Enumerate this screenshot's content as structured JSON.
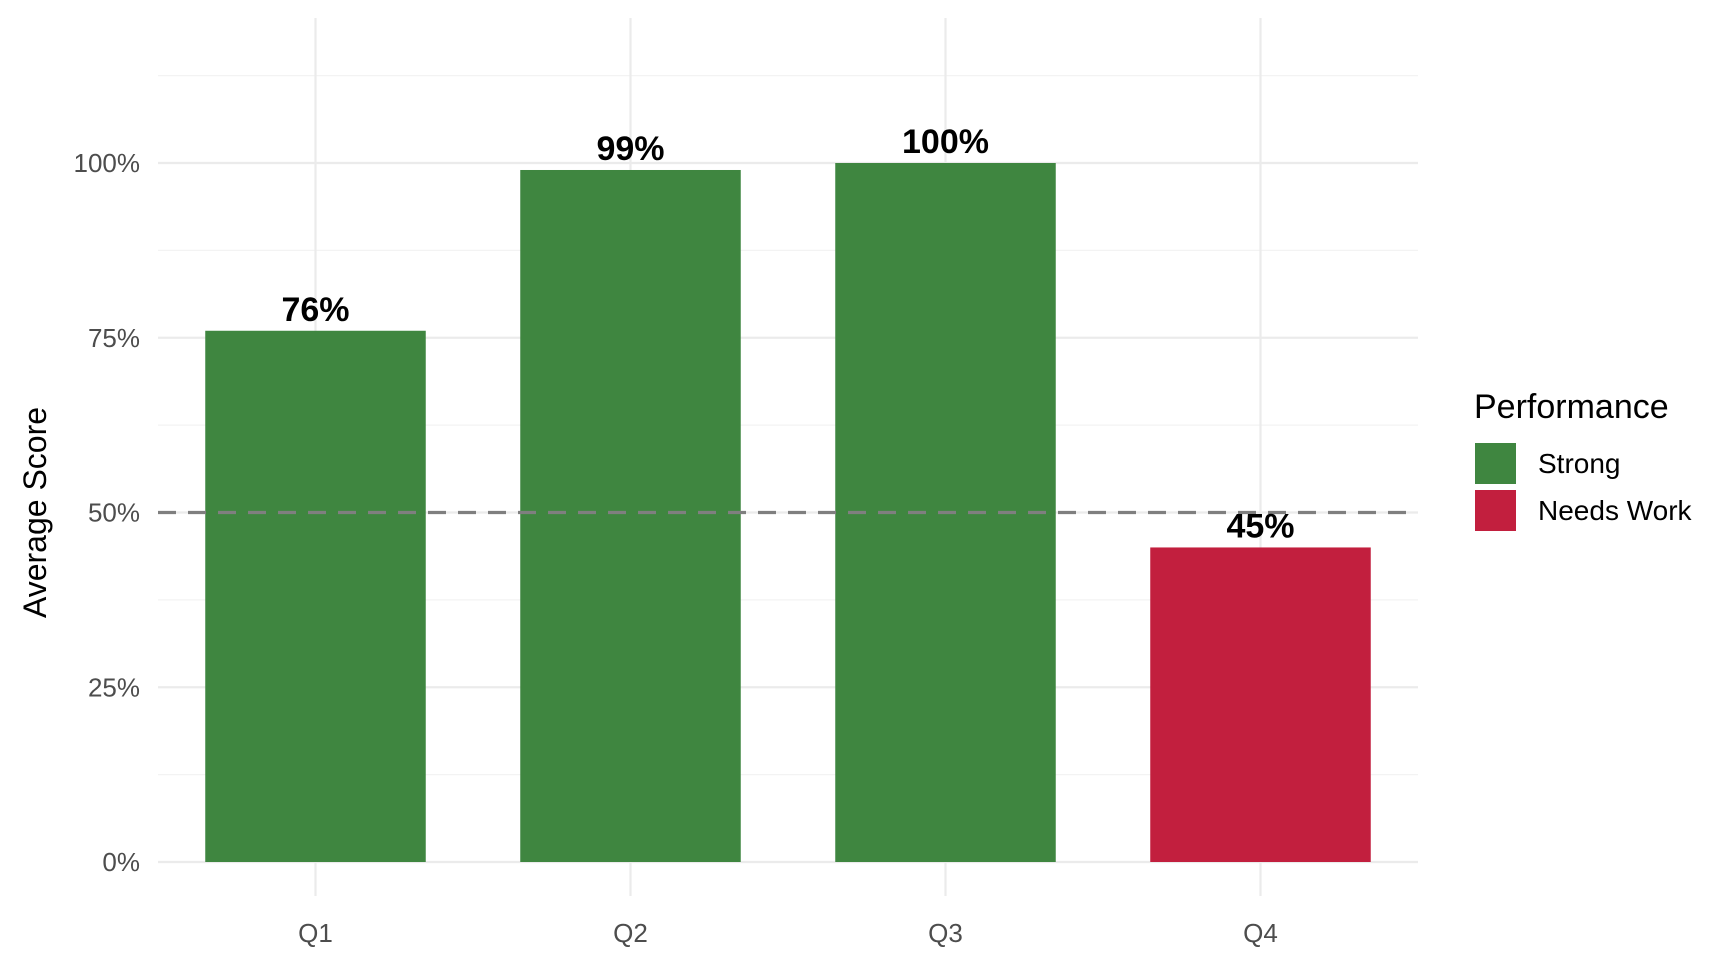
{
  "chart_data": {
    "type": "bar",
    "categories": [
      "Q1",
      "Q2",
      "Q3",
      "Q4"
    ],
    "values": [
      76,
      99,
      100,
      45
    ],
    "value_labels": [
      "76%",
      "99%",
      "100%",
      "45%"
    ],
    "performance": [
      "Strong",
      "Strong",
      "Strong",
      "Needs Work"
    ],
    "title": "",
    "xlabel": "",
    "ylabel": "Average Score",
    "ylim": [
      0,
      120
    ],
    "y_ticks": [
      0,
      25,
      50,
      75,
      100
    ],
    "y_tick_labels": [
      "0%",
      "25%",
      "50%",
      "75%",
      "100%"
    ],
    "reference_line": {
      "value": 50,
      "style": "dashed",
      "color": "#7f7f7f"
    },
    "grid": true,
    "legend": {
      "title": "Performance",
      "placement": "right",
      "items": [
        {
          "label": "Strong",
          "color": "#3f8640"
        },
        {
          "label": "Needs Work",
          "color": "#c21f3e"
        }
      ]
    },
    "colors": {
      "Strong": "#3f8640",
      "Needs Work": "#c21f3e"
    }
  }
}
